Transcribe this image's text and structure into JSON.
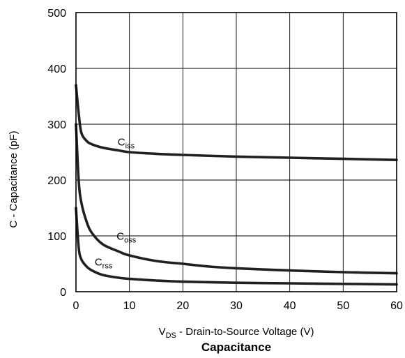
{
  "chart_data": {
    "type": "line",
    "title": "Capacitance",
    "xlabel": {
      "main": "V",
      "sub": "DS",
      "rest": " - Drain-to-Source Voltage (V)"
    },
    "ylabel": "C - Capacitance (pF)",
    "xlim": [
      0,
      60
    ],
    "ylim": [
      0,
      500
    ],
    "xticks": [
      "0",
      "10",
      "20",
      "30",
      "40",
      "50",
      "60"
    ],
    "yticks": [
      "0",
      "100",
      "200",
      "300",
      "400",
      "500"
    ],
    "grid": true,
    "line_color": "#231f20",
    "series": [
      {
        "name": {
          "main": "C",
          "sub": "iss"
        },
        "label_at": [
          7.8,
          262
        ],
        "x": [
          0,
          0.5,
          1,
          2,
          3,
          5,
          8,
          10,
          15,
          20,
          30,
          40,
          50,
          60
        ],
        "y": [
          370,
          320,
          285,
          270,
          264,
          258,
          253,
          250,
          247,
          245,
          242,
          240,
          238,
          236
        ]
      },
      {
        "name": {
          "main": "C",
          "sub": "oss"
        },
        "label_at": [
          7.6,
          93
        ],
        "x": [
          0,
          0.5,
          1,
          2,
          3,
          5,
          8,
          10,
          15,
          20,
          25,
          30,
          40,
          50,
          60
        ],
        "y": [
          300,
          200,
          160,
          125,
          105,
          85,
          72,
          65,
          55,
          50,
          45,
          42,
          38,
          35,
          33
        ]
      },
      {
        "name": {
          "main": "C",
          "sub": "rss"
        },
        "label_at": [
          3.5,
          47
        ],
        "x": [
          0,
          0.5,
          1,
          2,
          3,
          5,
          8,
          10,
          15,
          20,
          30,
          40,
          50,
          60
        ],
        "y": [
          150,
          80,
          58,
          45,
          38,
          30,
          25,
          23,
          20,
          18,
          16,
          15,
          14,
          13
        ]
      }
    ]
  }
}
